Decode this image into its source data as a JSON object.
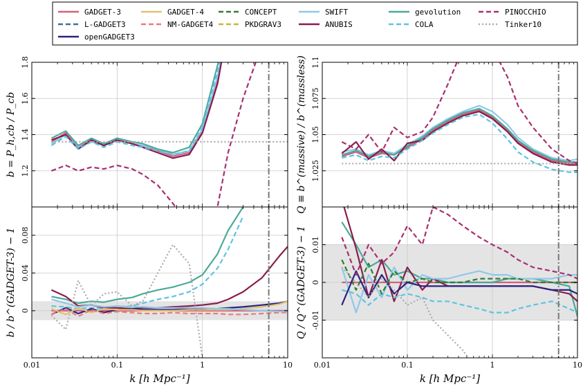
{
  "chart_data": {
    "type": "line",
    "figure_layout": "2x2 panels sharing x axis per column",
    "x_scale": "log",
    "xlim": [
      0.01,
      10
    ],
    "x_ticks": [
      0.01,
      0.1,
      1,
      10
    ],
    "x_tick_labels": [
      "0.01",
      "0.1",
      "1",
      "10"
    ],
    "xlabel": "k [h Mpc⁻¹]",
    "vline_x": 6,
    "legend_position": "top-center",
    "legend": [
      {
        "name": "GADGET-3",
        "color": "#d5607a",
        "dash": "solid"
      },
      {
        "name": "L-GADGET3",
        "color": "#3f6e9e",
        "dash": "dashed"
      },
      {
        "name": "openGADGET3",
        "color": "#2a2280",
        "dash": "solid"
      },
      {
        "name": "GADGET-4",
        "color": "#e2c26e",
        "dash": "solid"
      },
      {
        "name": "NM-GADGET4",
        "color": "#ec7a7a",
        "dash": "dashed"
      },
      {
        "name": "CONCEPT",
        "color": "#2e7d32",
        "dash": "dashed"
      },
      {
        "name": "PKDGRAV3",
        "color": "#c9b53a",
        "dash": "dashed"
      },
      {
        "name": "SWIFT",
        "color": "#8ec8ea",
        "dash": "solid"
      },
      {
        "name": "ANUBIS",
        "color": "#8a1c4c",
        "dash": "solid"
      },
      {
        "name": "gevolution",
        "color": "#4aaa98",
        "dash": "solid"
      },
      {
        "name": "COLA",
        "color": "#5cc4e2",
        "dash": "dashed"
      },
      {
        "name": "PINOCCHIO",
        "color": "#a82f6e",
        "dash": "dashed"
      },
      {
        "name": "Tinker10",
        "color": "#aaaaaa",
        "dash": "dotted"
      }
    ],
    "k": [
      0.017,
      0.025,
      0.035,
      0.05,
      0.07,
      0.1,
      0.15,
      0.2,
      0.3,
      0.45,
      0.7,
      1.0,
      1.5,
      2.0,
      3.0,
      5.0,
      8.0,
      10.0
    ],
    "panels": [
      {
        "id": "top-left",
        "ylabel": "b = P_h,cb / P_cb",
        "ylim": [
          1.0,
          1.8
        ],
        "y_ticks": [
          1.2,
          1.4,
          1.6,
          1.8
        ],
        "y_tick_labels": [
          "1.2",
          "1.4",
          "1.6",
          "1.8"
        ],
        "series": [
          {
            "name": "GADGET-3",
            "values": [
              1.36,
              1.41,
              1.33,
              1.37,
              1.34,
              1.37,
              1.35,
              1.34,
              1.31,
              1.28,
              1.3,
              1.42,
              1.7,
              2.0,
              null,
              null,
              null,
              null
            ]
          },
          {
            "name": "SWIFT",
            "values": [
              1.35,
              1.4,
              1.33,
              1.36,
              1.34,
              1.37,
              1.35,
              1.34,
              1.32,
              1.29,
              1.31,
              1.43,
              1.72,
              2.0,
              null,
              null,
              null,
              null
            ]
          },
          {
            "name": "gevolution",
            "values": [
              1.38,
              1.42,
              1.34,
              1.38,
              1.35,
              1.38,
              1.36,
              1.35,
              1.32,
              1.3,
              1.33,
              1.46,
              1.78,
              2.0,
              null,
              null,
              null,
              null
            ]
          },
          {
            "name": "ANUBIS",
            "values": [
              1.37,
              1.4,
              1.32,
              1.37,
              1.34,
              1.37,
              1.35,
              1.33,
              1.3,
              1.27,
              1.29,
              1.41,
              1.68,
              2.0,
              null,
              null,
              null,
              null
            ]
          },
          {
            "name": "COLA",
            "values": [
              1.34,
              1.39,
              1.32,
              1.36,
              1.33,
              1.36,
              1.34,
              1.33,
              1.31,
              1.29,
              1.31,
              1.44,
              1.75,
              2.0,
              null,
              null,
              null,
              null
            ]
          },
          {
            "name": "PINOCCHIO",
            "values": [
              1.2,
              1.23,
              1.2,
              1.22,
              1.21,
              1.23,
              1.21,
              1.18,
              1.12,
              1.02,
              0.9,
              0.8,
              1.0,
              1.3,
              1.6,
              1.9,
              null,
              null
            ]
          },
          {
            "name": "Tinker10",
            "values": [
              1.36,
              1.36,
              1.36,
              1.36,
              1.36,
              1.36,
              1.36,
              1.36,
              1.36,
              1.36,
              1.36,
              1.36,
              1.36,
              1.36,
              1.36,
              1.36,
              1.36,
              1.36
            ]
          }
        ]
      },
      {
        "id": "top-right",
        "ylabel": "Q ≡ b^(massive) / b^(massless)",
        "ylim": [
          1.0,
          1.1
        ],
        "y_ticks": [
          1.025,
          1.05,
          1.075,
          1.1
        ],
        "y_tick_labels": [
          "1.025",
          "1.05",
          "1.075",
          "1.1"
        ],
        "series": [
          {
            "name": "GADGET-3",
            "values": [
              1.035,
              1.038,
              1.034,
              1.037,
              1.036,
              1.041,
              1.047,
              1.053,
              1.059,
              1.064,
              1.067,
              1.062,
              1.053,
              1.045,
              1.038,
              1.032,
              1.03,
              1.03
            ]
          },
          {
            "name": "SWIFT",
            "values": [
              1.038,
              1.04,
              1.036,
              1.039,
              1.037,
              1.043,
              1.049,
              1.055,
              1.061,
              1.066,
              1.07,
              1.066,
              1.057,
              1.048,
              1.04,
              1.034,
              1.032,
              1.033
            ]
          },
          {
            "name": "gevolution",
            "values": [
              1.036,
              1.039,
              1.035,
              1.038,
              1.036,
              1.042,
              1.048,
              1.054,
              1.06,
              1.065,
              1.068,
              1.063,
              1.054,
              1.046,
              1.039,
              1.033,
              1.031,
              1.031
            ]
          },
          {
            "name": "ANUBIS",
            "values": [
              1.037,
              1.045,
              1.033,
              1.04,
              1.032,
              1.044,
              1.046,
              1.052,
              1.058,
              1.063,
              1.066,
              1.061,
              1.052,
              1.044,
              1.037,
              1.031,
              1.029,
              1.029
            ]
          },
          {
            "name": "COLA",
            "values": [
              1.034,
              1.036,
              1.032,
              1.035,
              1.034,
              1.04,
              1.046,
              1.051,
              1.057,
              1.062,
              1.064,
              1.058,
              1.047,
              1.038,
              1.031,
              1.026,
              1.024,
              1.024
            ]
          },
          {
            "name": "PINOCCHIO",
            "values": [
              1.045,
              1.04,
              1.05,
              1.038,
              1.055,
              1.048,
              1.052,
              1.062,
              1.085,
              1.11,
              1.12,
              1.11,
              1.09,
              1.07,
              1.055,
              1.04,
              1.032,
              1.03
            ]
          },
          {
            "name": "Tinker10",
            "values": [
              1.03,
              1.03,
              1.03,
              1.03,
              1.03,
              1.03,
              1.03,
              1.03,
              1.03,
              1.03,
              1.03,
              1.03,
              1.03,
              1.03,
              1.03,
              1.03,
              1.03,
              1.03
            ]
          }
        ]
      },
      {
        "id": "bottom-left",
        "ylabel": "b / b^(GADGET-3) − 1",
        "ylim": [
          -0.05,
          0.11
        ],
        "y_ticks": [
          0,
          0.04,
          0.08
        ],
        "y_tick_labels": [
          "0",
          "0.04",
          "0.08"
        ],
        "shaded_band": [
          -0.01,
          0.01
        ],
        "series": [
          {
            "name": "GADGET-3",
            "values": [
              0,
              0,
              0,
              0,
              0,
              0,
              0,
              0,
              0,
              0,
              0,
              0,
              0,
              0,
              0,
              0,
              0,
              0
            ]
          },
          {
            "name": "gevolution",
            "values": [
              0.015,
              0.012,
              0.008,
              0.01,
              0.009,
              0.012,
              0.014,
              0.018,
              0.022,
              0.025,
              0.03,
              0.038,
              0.06,
              0.085,
              0.11,
              null,
              null,
              null
            ]
          },
          {
            "name": "COLA",
            "values": [
              0.005,
              0.004,
              0.002,
              0.003,
              0.002,
              0.004,
              0.005,
              0.008,
              0.012,
              0.015,
              0.02,
              0.028,
              0.045,
              0.065,
              0.1,
              null,
              null,
              null
            ]
          },
          {
            "name": "ANUBIS",
            "values": [
              0.022,
              0.015,
              0.005,
              0.006,
              0.003,
              0.003,
              0.002,
              0.003,
              0.003,
              0.004,
              0.005,
              0.006,
              0.008,
              0.012,
              0.02,
              0.035,
              0.058,
              0.068
            ]
          },
          {
            "name": "openGADGET3",
            "values": [
              -0.004,
              0.003,
              -0.003,
              0.002,
              -0.002,
              0.001,
              0.002,
              0.001,
              0.001,
              0.001,
              0.002,
              0.002,
              0.002,
              0.003,
              0.004,
              0.006,
              0.008,
              0.01
            ]
          },
          {
            "name": "GADGET-4",
            "values": [
              0.002,
              -0.004,
              0.003,
              -0.002,
              0.002,
              0.001,
              0.001,
              0.0,
              0.0,
              0.0,
              0.001,
              0.001,
              0.001,
              0.001,
              0.002,
              0.004,
              0.007,
              0.01
            ]
          },
          {
            "name": "NM-GADGET4",
            "values": [
              -0.004,
              0.002,
              -0.006,
              0.001,
              -0.003,
              -0.001,
              -0.002,
              -0.003,
              -0.003,
              -0.002,
              -0.003,
              -0.003,
              -0.003,
              -0.004,
              -0.004,
              -0.003,
              -0.002,
              -0.002
            ]
          },
          {
            "name": "SWIFT",
            "values": [
              0.012,
              0.008,
              0.004,
              0.006,
              0.004,
              0.005,
              0.004,
              0.004,
              0.003,
              0.003,
              0.003,
              0.003,
              0.002,
              0.002,
              0.001,
              0.0,
              -0.001,
              -0.001
            ]
          },
          {
            "name": "Tinker10",
            "values": [
              -0.005,
              -0.02,
              0.032,
              0.005,
              0.018,
              0.02,
              0.005,
              0.01,
              0.04,
              0.07,
              0.05,
              -0.05,
              null,
              null,
              null,
              null,
              null,
              null
            ]
          }
        ]
      },
      {
        "id": "bottom-right",
        "ylabel": "Q / Q^(GADGET-3) − 1",
        "ylim": [
          -0.02,
          0.02
        ],
        "y_ticks": [
          -0.01,
          0,
          0.01
        ],
        "y_tick_labels": [
          "-0.01",
          "0",
          "0.01"
        ],
        "shaded_band": [
          -0.01,
          0.01
        ],
        "series": [
          {
            "name": "GADGET-3",
            "values": [
              0,
              0,
              0,
              0,
              0,
              0,
              0,
              0,
              0,
              0,
              0,
              0,
              0,
              0,
              0,
              0,
              0,
              0
            ]
          },
          {
            "name": "gevolution",
            "values": [
              0.016,
              0.01,
              0.004,
              0.006,
              0.002,
              0.003,
              0.001,
              0.001,
              0.0,
              0.0,
              0.0,
              0.0,
              0.001,
              0.001,
              0.001,
              0.0,
              -0.001,
              -0.009
            ]
          },
          {
            "name": "ANUBIS",
            "values": [
              0.022,
              0.009,
              -0.004,
              0.006,
              -0.005,
              0.004,
              -0.002,
              0.001,
              -0.001,
              -0.001,
              -0.001,
              -0.001,
              -0.001,
              -0.001,
              -0.001,
              -0.002,
              -0.003,
              -0.005
            ]
          },
          {
            "name": "SWIFT",
            "values": [
              0.004,
              -0.008,
              0.002,
              -0.004,
              0.004,
              -0.002,
              0.002,
              0.001,
              0.001,
              0.002,
              0.003,
              0.002,
              0.002,
              0.001,
              0.001,
              0.001,
              0.002,
              0.002
            ]
          },
          {
            "name": "COLA",
            "values": [
              -0.002,
              -0.003,
              -0.006,
              -0.003,
              -0.004,
              -0.003,
              -0.004,
              -0.005,
              -0.005,
              -0.006,
              -0.007,
              -0.008,
              -0.008,
              -0.007,
              -0.006,
              -0.005,
              -0.007,
              -0.008
            ]
          },
          {
            "name": "CONCEPT",
            "values": [
              0.006,
              -0.002,
              0.005,
              -0.003,
              0.003,
              0.0,
              0.001,
              0.0,
              0.0,
              0.0,
              0.001,
              0.001,
              0.001,
              0.001,
              0.0,
              0.0,
              0.0,
              0.0
            ]
          },
          {
            "name": "openGADGET3",
            "values": [
              -0.006,
              0.003,
              -0.004,
              0.002,
              -0.003,
              0.0,
              -0.001,
              -0.001,
              -0.001,
              -0.001,
              -0.001,
              -0.001,
              -0.001,
              -0.001,
              -0.001,
              -0.002,
              -0.002,
              -0.003
            ]
          },
          {
            "name": "PINOCCHIO",
            "values": [
              0.012,
              0.002,
              0.01,
              0.005,
              0.008,
              0.015,
              0.01,
              0.02,
              0.018,
              0.015,
              0.012,
              0.01,
              0.008,
              0.006,
              0.004,
              0.003,
              0.002,
              0.001
            ]
          },
          {
            "name": "Tinker10",
            "values": [
              0.004,
              0.0,
              -0.004,
              0.001,
              -0.002,
              -0.006,
              -0.004,
              -0.01,
              -0.014,
              -0.018,
              -0.024,
              null,
              null,
              null,
              null,
              null,
              null,
              null
            ]
          }
        ]
      }
    ]
  }
}
